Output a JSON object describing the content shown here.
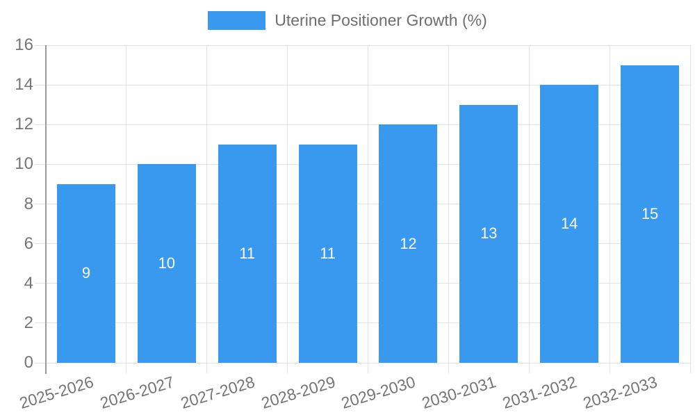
{
  "chart_data": {
    "type": "bar",
    "title": "",
    "legend": "Uterine Positioner Growth (%)",
    "legend_position": "top",
    "categories": [
      "2025-2026",
      "2026-2027",
      "2027-2028",
      "2028-2029",
      "2029-2030",
      "2030-2031",
      "2031-2032",
      "2032-2033"
    ],
    "values": [
      9,
      10,
      11,
      11,
      12,
      13,
      14,
      15
    ],
    "xlabel": "",
    "ylabel": "",
    "ylim": [
      0,
      16
    ],
    "yticks": [
      0,
      2,
      4,
      6,
      8,
      10,
      12,
      14,
      16
    ],
    "grid": true,
    "bar_value_labels_inside": true,
    "colors": {
      "bar": "#3899ee",
      "bar_value_label": "#ffffff",
      "grid": "#e3e3e3",
      "axis": "#9a9a9a",
      "tick_text": "#757575",
      "legend_text": "#6e6e6e",
      "background": "#ffffff"
    }
  }
}
